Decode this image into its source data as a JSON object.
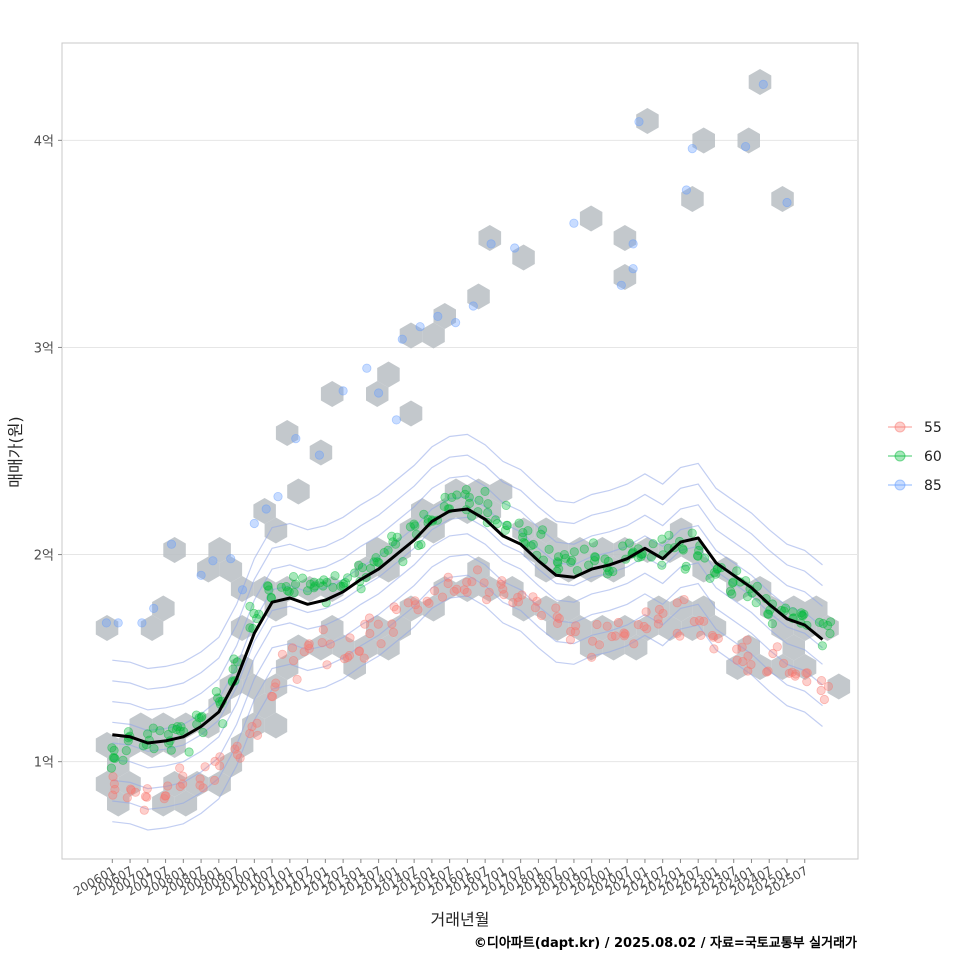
{
  "chart_data": {
    "type": "scatter",
    "xlabel": "거래년월",
    "ylabel": "매매가(원)",
    "caption": "©디아파트(dapt.kr) / 2025.08.02 / 자료=국토교통부 실거래가",
    "x_ticks": [
      "200601",
      "200607",
      "200701",
      "200707",
      "200801",
      "200807",
      "200901",
      "200907",
      "201001",
      "201007",
      "201101",
      "201107",
      "201201",
      "201207",
      "201301",
      "201307",
      "201401",
      "201407",
      "201501",
      "201507",
      "201601",
      "201607",
      "201701",
      "201707",
      "201801",
      "201807",
      "201901",
      "201907",
      "202001",
      "202007",
      "202101",
      "202107",
      "202201",
      "202207",
      "202301",
      "202307",
      "202401",
      "202407",
      "202501",
      "202507"
    ],
    "y_ticks": [
      {
        "label": "1억",
        "value": 1.0
      },
      {
        "label": "2억",
        "value": 2.0
      },
      {
        "label": "3억",
        "value": 3.0
      },
      {
        "label": "4억",
        "value": 4.0
      }
    ],
    "ylim": [
      0.53,
      4.47
    ],
    "xlim_months": [
      -17,
      252
    ],
    "legend": {
      "position": "right",
      "entries": [
        {
          "name": "55",
          "color": "#F8766D"
        },
        {
          "name": "60",
          "color": "#00BA38"
        },
        {
          "name": "85",
          "color": "#619CFF"
        }
      ]
    },
    "trend_line": {
      "color": "#000000",
      "x_months": [
        0,
        6,
        12,
        18,
        24,
        30,
        36,
        42,
        48,
        54,
        60,
        66,
        72,
        78,
        84,
        90,
        96,
        102,
        108,
        114,
        120,
        126,
        132,
        138,
        144,
        150,
        156,
        162,
        168,
        174,
        180,
        186,
        192,
        198,
        204,
        210,
        216,
        222,
        228,
        234,
        240
      ],
      "y": [
        1.13,
        1.12,
        1.09,
        1.1,
        1.12,
        1.17,
        1.24,
        1.4,
        1.62,
        1.77,
        1.79,
        1.76,
        1.78,
        1.82,
        1.88,
        1.93,
        2.0,
        2.07,
        2.16,
        2.21,
        2.22,
        2.17,
        2.09,
        2.05,
        1.97,
        1.9,
        1.89,
        1.93,
        1.95,
        1.98,
        2.03,
        1.98,
        2.06,
        2.08,
        1.96,
        1.9,
        1.84,
        1.76,
        1.69,
        1.66,
        1.59
      ]
    },
    "series": [
      {
        "name": "55",
        "color": "#F8766D",
        "centers": [
          [
            0,
            0.86
          ],
          [
            6,
            0.85
          ],
          [
            12,
            0.84
          ],
          [
            18,
            0.82
          ],
          [
            24,
            0.88
          ],
          [
            30,
            0.93
          ],
          [
            36,
            0.98
          ],
          [
            42,
            1.05
          ],
          [
            48,
            1.15
          ],
          [
            54,
            1.32
          ],
          [
            60,
            1.48
          ],
          [
            66,
            1.58
          ],
          [
            72,
            1.55
          ],
          [
            78,
            1.53
          ],
          [
            84,
            1.58
          ],
          [
            90,
            1.64
          ],
          [
            96,
            1.7
          ],
          [
            102,
            1.76
          ],
          [
            108,
            1.8
          ],
          [
            114,
            1.86
          ],
          [
            120,
            1.88
          ],
          [
            126,
            1.85
          ],
          [
            132,
            1.8
          ],
          [
            138,
            1.76
          ],
          [
            144,
            1.7
          ],
          [
            150,
            1.66
          ],
          [
            156,
            1.62
          ],
          [
            162,
            1.6
          ],
          [
            168,
            1.62
          ],
          [
            174,
            1.65
          ],
          [
            180,
            1.68
          ],
          [
            186,
            1.7
          ],
          [
            192,
            1.72
          ],
          [
            198,
            1.7
          ],
          [
            204,
            1.6
          ],
          [
            210,
            1.55
          ],
          [
            216,
            1.52
          ],
          [
            222,
            1.48
          ],
          [
            228,
            1.44
          ],
          [
            234,
            1.4
          ],
          [
            240,
            1.37
          ]
        ]
      },
      {
        "name": "60",
        "color": "#00BA38",
        "centers": [
          [
            0,
            1.03
          ],
          [
            6,
            1.08
          ],
          [
            12,
            1.1
          ],
          [
            18,
            1.12
          ],
          [
            24,
            1.15
          ],
          [
            30,
            1.2
          ],
          [
            36,
            1.28
          ],
          [
            42,
            1.45
          ],
          [
            48,
            1.68
          ],
          [
            54,
            1.82
          ],
          [
            60,
            1.86
          ],
          [
            66,
            1.84
          ],
          [
            72,
            1.84
          ],
          [
            78,
            1.86
          ],
          [
            84,
            1.92
          ],
          [
            90,
            1.97
          ],
          [
            96,
            2.03
          ],
          [
            102,
            2.1
          ],
          [
            108,
            2.18
          ],
          [
            114,
            2.24
          ],
          [
            120,
            2.26
          ],
          [
            126,
            2.24
          ],
          [
            132,
            2.16
          ],
          [
            138,
            2.1
          ],
          [
            144,
            2.03
          ],
          [
            150,
            1.98
          ],
          [
            156,
            1.96
          ],
          [
            162,
            1.97
          ],
          [
            168,
            1.98
          ],
          [
            174,
            1.99
          ],
          [
            180,
            2.0
          ],
          [
            186,
            2.01
          ],
          [
            192,
            2.03
          ],
          [
            198,
            2.0
          ],
          [
            204,
            1.92
          ],
          [
            210,
            1.86
          ],
          [
            216,
            1.8
          ],
          [
            222,
            1.74
          ],
          [
            228,
            1.7
          ],
          [
            234,
            1.66
          ],
          [
            240,
            1.62
          ]
        ]
      },
      {
        "name": "85",
        "color": "#619CFF",
        "points": [
          [
            -2,
            1.67
          ],
          [
            2,
            1.67
          ],
          [
            10,
            1.67
          ],
          [
            14,
            1.74
          ],
          [
            20,
            2.05
          ],
          [
            30,
            1.9
          ],
          [
            34,
            1.97
          ],
          [
            40,
            1.98
          ],
          [
            44,
            1.83
          ],
          [
            48,
            2.15
          ],
          [
            52,
            2.22
          ],
          [
            56,
            2.28
          ],
          [
            62,
            2.56
          ],
          [
            70,
            2.48
          ],
          [
            78,
            2.79
          ],
          [
            86,
            2.9
          ],
          [
            90,
            2.78
          ],
          [
            96,
            2.65
          ],
          [
            98,
            3.04
          ],
          [
            104,
            3.1
          ],
          [
            110,
            3.15
          ],
          [
            116,
            3.12
          ],
          [
            122,
            3.2
          ],
          [
            128,
            3.5
          ],
          [
            136,
            3.48
          ],
          [
            156,
            3.6
          ],
          [
            172,
            3.3
          ],
          [
            176,
            3.38
          ],
          [
            176,
            3.5
          ],
          [
            178,
            4.09
          ],
          [
            194,
            3.76
          ],
          [
            196,
            3.96
          ],
          [
            214,
            3.97
          ],
          [
            220,
            4.27
          ],
          [
            228,
            3.7
          ]
        ]
      }
    ]
  }
}
